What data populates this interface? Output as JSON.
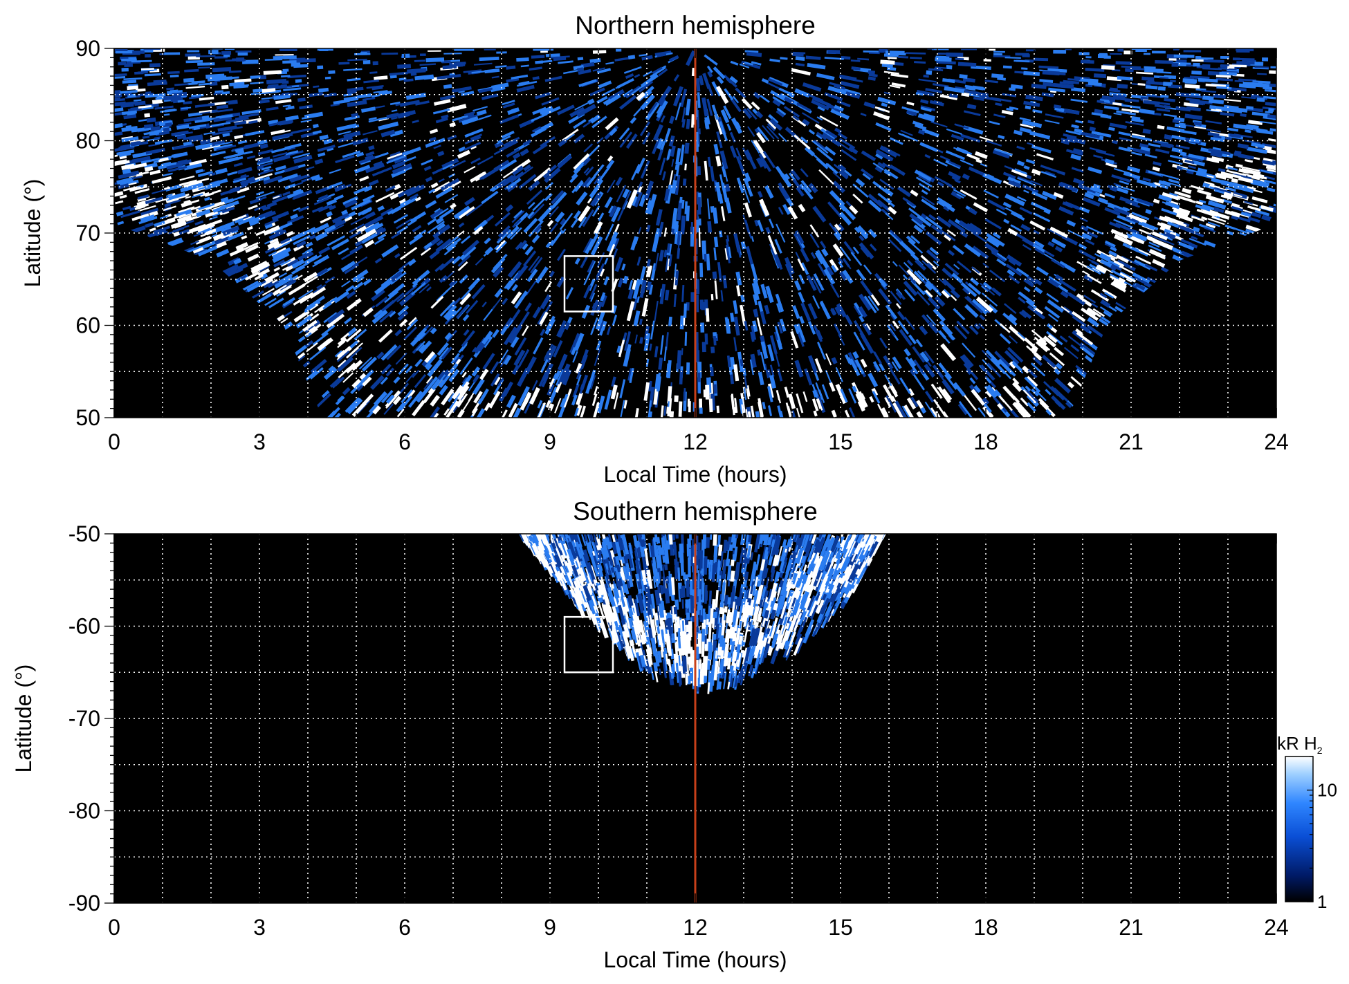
{
  "chart_data": [
    {
      "type": "heatmap",
      "title": "Northern hemisphere",
      "xlabel": "Local Time (hours)",
      "ylabel": "Latitude (°)",
      "xlim": [
        0,
        24
      ],
      "ylim": [
        50,
        90
      ],
      "x_ticks": [
        0,
        3,
        6,
        9,
        12,
        15,
        18,
        21,
        24
      ],
      "y_ticks": [
        50,
        60,
        70,
        80,
        90
      ],
      "grid": true,
      "reference_line": {
        "x": 12,
        "color": "#c8401a"
      },
      "box": {
        "x": [
          9.3,
          10.3
        ],
        "y": [
          61.5,
          67.5
        ]
      },
      "visible_region": {
        "description_edges": [
          [
            0,
            71
          ],
          [
            2,
            67
          ],
          [
            3.5,
            60
          ],
          [
            4.3,
            50
          ],
          [
            19.7,
            50
          ],
          [
            20.5,
            60
          ],
          [
            22,
            67
          ],
          [
            24,
            71
          ]
        ]
      },
      "auroral_band": [
        [
          0,
          76
        ],
        [
          2,
          72.5
        ],
        [
          3.5,
          66
        ],
        [
          5,
          56
        ],
        [
          5.5,
          50
        ],
        [
          18.5,
          50
        ],
        [
          19,
          56
        ],
        [
          20.5,
          66
        ],
        [
          22,
          72.5
        ],
        [
          24,
          76
        ]
      ]
    },
    {
      "type": "heatmap",
      "title": "Southern hemisphere",
      "xlabel": "Local Time (hours)",
      "ylabel": "Latitude (°)",
      "xlim": [
        0,
        24
      ],
      "ylim": [
        -90,
        -50
      ],
      "x_ticks": [
        0,
        3,
        6,
        9,
        12,
        15,
        18,
        21,
        24
      ],
      "y_ticks": [
        -90,
        -80,
        -70,
        -60,
        -50
      ],
      "grid": true,
      "reference_line": {
        "x": 12,
        "color": "#c8401a"
      },
      "box": {
        "x": [
          9.3,
          10.3
        ],
        "y": [
          -65,
          -59
        ]
      },
      "visible_region": {
        "description_edges": [
          [
            8.4,
            -50
          ],
          [
            9.6,
            -58
          ],
          [
            11,
            -65
          ],
          [
            12,
            -66.5
          ],
          [
            12.6,
            -67
          ],
          [
            14,
            -63
          ],
          [
            15.2,
            -57
          ],
          [
            15.9,
            -50
          ]
        ]
      },
      "auroral_band": [
        [
          9,
          -53
        ],
        [
          10.5,
          -60
        ],
        [
          12,
          -63
        ],
        [
          13.5,
          -60
        ],
        [
          15,
          -53
        ]
      ]
    }
  ],
  "colorbar": {
    "title": "kR H",
    "subscript": "2",
    "scale": "log",
    "range": [
      1,
      20
    ],
    "tick_labels": [
      "1",
      "10"
    ],
    "tick_values": [
      1,
      10
    ],
    "colors": [
      "#000000",
      "#001a66",
      "#0a4fd6",
      "#2f86ff",
      "#9fd0ff",
      "#ffffff"
    ]
  },
  "colors": {
    "background": "#000000",
    "grid": "#ffffff",
    "noon_line": "#c8401a",
    "emission_low": "#0a3a9a",
    "emission_mid": "#2a7cf0",
    "emission_high": "#ffffff"
  }
}
